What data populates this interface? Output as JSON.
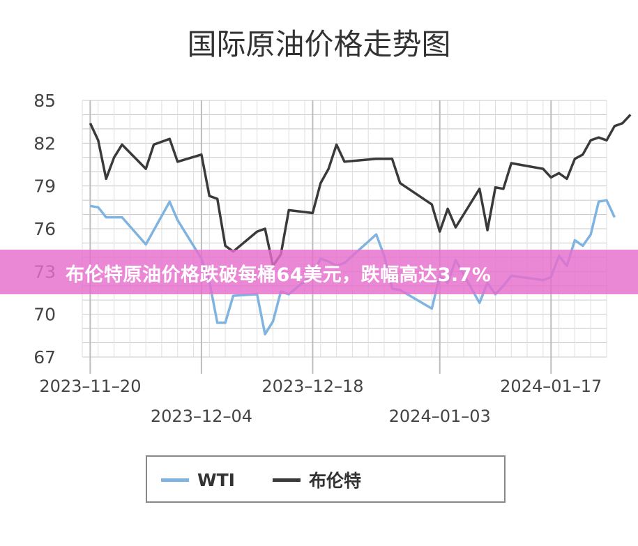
{
  "title": "国际原油价格走势图",
  "banner": "布伦特原油价格跌破每桶64美元，跌幅高达3.7%",
  "colors": {
    "wti": "#7fb3e0",
    "brent": "#3a3a3a",
    "grid": "#c8c8c8",
    "banner": "#e66ecd"
  },
  "chart_data": {
    "type": "line",
    "ylim": [
      67,
      85
    ],
    "yticks": [
      85,
      82,
      79,
      76,
      73,
      70,
      67
    ],
    "x_range": [
      "2023-11-19",
      "2024-01-24"
    ],
    "xticks": [
      {
        "date": "2023-11-20",
        "label": "2023–11–20",
        "row": 1
      },
      {
        "date": "2023-12-04",
        "label": "2023–12–04",
        "row": 2
      },
      {
        "date": "2023-12-18",
        "label": "2023–12–18",
        "row": 1
      },
      {
        "date": "2024-01-03",
        "label": "2024–01–03",
        "row": 2
      },
      {
        "date": "2024-01-17",
        "label": "2024–01–17",
        "row": 1
      }
    ],
    "legend_position": "bottom",
    "grid": true,
    "series": [
      {
        "name": "WTI",
        "points": [
          [
            "2023-11-20",
            77.6
          ],
          [
            "2023-11-21",
            77.5
          ],
          [
            "2023-11-22",
            76.8
          ],
          [
            "2023-11-24",
            76.8
          ],
          [
            "2023-11-27",
            74.9
          ],
          [
            "2023-11-30",
            77.9
          ],
          [
            "2023-12-01",
            76.6
          ],
          [
            "2023-12-04",
            73.9
          ],
          [
            "2023-12-05",
            72.3
          ],
          [
            "2023-12-06",
            69.4
          ],
          [
            "2023-12-07",
            69.4
          ],
          [
            "2023-12-08",
            71.3
          ],
          [
            "2023-12-11",
            71.4
          ],
          [
            "2023-12-12",
            68.6
          ],
          [
            "2023-12-13",
            69.5
          ],
          [
            "2023-12-14",
            71.6
          ],
          [
            "2023-12-15",
            71.4
          ],
          [
            "2023-12-18",
            72.8
          ],
          [
            "2023-12-19",
            73.9
          ],
          [
            "2023-12-20",
            73.7
          ],
          [
            "2023-12-21",
            73.4
          ],
          [
            "2023-12-22",
            73.6
          ],
          [
            "2023-12-26",
            75.6
          ],
          [
            "2023-12-27",
            74.1
          ],
          [
            "2023-12-28",
            71.8
          ],
          [
            "2023-12-29",
            71.7
          ],
          [
            "2024-01-02",
            70.4
          ],
          [
            "2024-01-03",
            72.7
          ],
          [
            "2024-01-04",
            72.2
          ],
          [
            "2024-01-05",
            73.8
          ],
          [
            "2024-01-08",
            70.8
          ],
          [
            "2024-01-09",
            72.2
          ],
          [
            "2024-01-10",
            71.4
          ],
          [
            "2024-01-11",
            72.0
          ],
          [
            "2024-01-12",
            72.7
          ],
          [
            "2024-01-16",
            72.4
          ],
          [
            "2024-01-17",
            72.6
          ],
          [
            "2024-01-18",
            74.1
          ],
          [
            "2024-01-19",
            73.4
          ],
          [
            "2024-01-20",
            75.2
          ],
          [
            "2024-01-21",
            74.8
          ],
          [
            "2024-01-22",
            75.6
          ],
          [
            "2024-01-23",
            77.9
          ],
          [
            "2024-01-24",
            78.0
          ],
          [
            "2024-01-25",
            76.8
          ]
        ]
      },
      {
        "name": "布伦特",
        "points": [
          [
            "2023-11-20",
            83.4
          ],
          [
            "2023-11-21",
            82.2
          ],
          [
            "2023-11-22",
            79.5
          ],
          [
            "2023-11-23",
            81.0
          ],
          [
            "2023-11-24",
            81.9
          ],
          [
            "2023-11-27",
            80.2
          ],
          [
            "2023-11-28",
            81.9
          ],
          [
            "2023-11-30",
            82.3
          ],
          [
            "2023-12-01",
            80.7
          ],
          [
            "2023-12-04",
            81.2
          ],
          [
            "2023-12-05",
            78.3
          ],
          [
            "2023-12-06",
            78.1
          ],
          [
            "2023-12-07",
            74.8
          ],
          [
            "2023-12-08",
            74.4
          ],
          [
            "2023-12-11",
            75.8
          ],
          [
            "2023-12-12",
            76.0
          ],
          [
            "2023-12-13",
            73.4
          ],
          [
            "2023-12-14",
            74.2
          ],
          [
            "2023-12-15",
            77.3
          ],
          [
            "2023-12-18",
            77.1
          ],
          [
            "2023-12-19",
            79.2
          ],
          [
            "2023-12-20",
            80.2
          ],
          [
            "2023-12-21",
            81.9
          ],
          [
            "2023-12-22",
            80.7
          ],
          [
            "2023-12-26",
            80.9
          ],
          [
            "2023-12-27",
            80.9
          ],
          [
            "2023-12-28",
            80.9
          ],
          [
            "2023-12-29",
            79.2
          ],
          [
            "2024-01-02",
            77.7
          ],
          [
            "2024-01-03",
            75.8
          ],
          [
            "2024-01-04",
            77.4
          ],
          [
            "2024-01-05",
            76.1
          ],
          [
            "2024-01-08",
            78.8
          ],
          [
            "2024-01-09",
            75.9
          ],
          [
            "2024-01-10",
            78.9
          ],
          [
            "2024-01-11",
            78.8
          ],
          [
            "2024-01-12",
            80.6
          ],
          [
            "2024-01-16",
            80.2
          ],
          [
            "2024-01-17",
            79.6
          ],
          [
            "2024-01-18",
            79.9
          ],
          [
            "2024-01-19",
            79.5
          ],
          [
            "2024-01-20",
            80.9
          ],
          [
            "2024-01-21",
            81.2
          ],
          [
            "2024-01-22",
            82.2
          ],
          [
            "2024-01-23",
            82.4
          ],
          [
            "2024-01-24",
            82.2
          ],
          [
            "2024-01-25",
            83.2
          ],
          [
            "2024-01-26",
            83.4
          ],
          [
            "2024-01-27",
            84.0
          ]
        ]
      }
    ]
  }
}
